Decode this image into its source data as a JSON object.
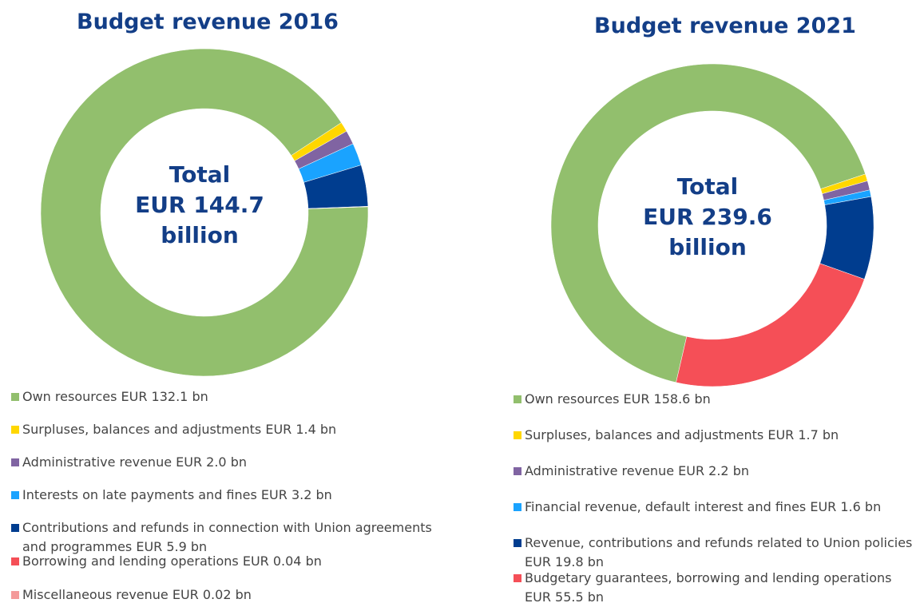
{
  "chart_data": [
    {
      "type": "donut",
      "title": "Budget revenue 2016",
      "annotation": [
        "Total",
        "EUR 144.7",
        "billion"
      ],
      "categories": [
        "Own resources EUR 132.1 bn",
        "Surpluses, balances and adjustments EUR 1.4 bn",
        "Administrative revenue EUR 2.0 bn",
        "Interests on late payments and fines EUR 3.2 bn",
        "Contributions and refunds in connection with Union agreements and programmes EUR 5.9 bn",
        "Borrowing and lending operations EUR 0.04 bn",
        "Miscellaneous revenue EUR 0.02 bn"
      ],
      "values": [
        132.1,
        1.4,
        2.0,
        3.2,
        5.9,
        0.04,
        0.02
      ],
      "colors": [
        "#92bf6d",
        "#ffd700",
        "#8064a2",
        "#1aa3ff",
        "#003d8f",
        "#f54f57",
        "#f49a9a"
      ]
    },
    {
      "type": "donut",
      "title": "Budget revenue 2021",
      "annotation": [
        "Total",
        "EUR 239.6",
        "billion"
      ],
      "categories": [
        "Own resources EUR 158.6 bn",
        "Surpluses, balances and adjustments EUR 1.7 bn",
        "Administrative revenue EUR 2.2 bn",
        "Financial revenue, default interest and fines EUR 1.6 bn",
        "Revenue, contributions and refunds related to Union policies EUR 19.8 bn",
        "Budgetary guarantees, borrowing and lending operations EUR 55.5 bn"
      ],
      "values": [
        158.6,
        1.7,
        2.2,
        1.6,
        19.8,
        55.5
      ],
      "colors": [
        "#92bf6d",
        "#ffd700",
        "#8064a2",
        "#1aa3ff",
        "#003d8f",
        "#f54f57"
      ]
    }
  ]
}
